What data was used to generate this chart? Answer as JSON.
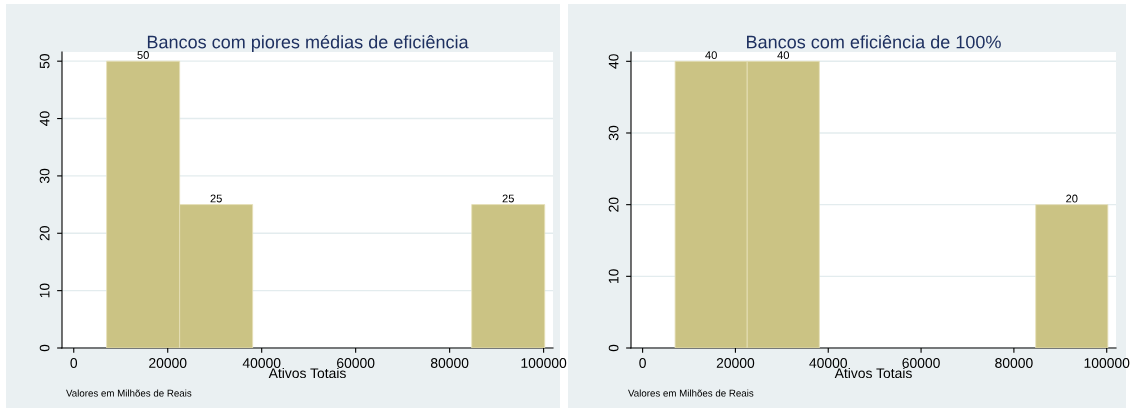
{
  "chart_data": [
    {
      "type": "histogram",
      "title": "Bancos com piores médias de eficiência",
      "xlabel": "Ativos Totais",
      "annotations": [
        "Valores em Milhões de Reais"
      ],
      "bins": [
        7000,
        22540,
        38080,
        53620,
        69160,
        84700,
        100240
      ],
      "values": [
        50,
        25,
        0,
        0,
        0,
        25
      ],
      "value_labels": [
        "50",
        "25",
        null,
        null,
        null,
        "25"
      ],
      "color": "#cbc384",
      "xlim": [
        -2500,
        102000
      ],
      "ylim": [
        0,
        51.6
      ],
      "xticks": [
        0,
        20000,
        40000,
        60000,
        80000,
        100000
      ],
      "yticks": [
        0,
        10,
        20,
        30,
        40,
        50
      ],
      "grid": "y"
    },
    {
      "type": "histogram",
      "title": "Bancos com eficiência de 100%",
      "xlabel": "Ativos Totais",
      "annotations": [
        "Valores em Milhões de Reais"
      ],
      "bins": [
        7000,
        22540,
        38080,
        53620,
        69160,
        84700,
        100240
      ],
      "values": [
        40,
        40,
        0,
        0,
        0,
        20
      ],
      "value_labels": [
        "40",
        "40",
        null,
        null,
        null,
        "20"
      ],
      "color": "#cbc384",
      "xlim": [
        -2500,
        102000
      ],
      "ylim": [
        0,
        41.3
      ],
      "xticks": [
        0,
        20000,
        40000,
        60000,
        80000,
        100000
      ],
      "yticks": [
        0,
        10,
        20,
        30,
        40
      ],
      "grid": "y"
    }
  ]
}
